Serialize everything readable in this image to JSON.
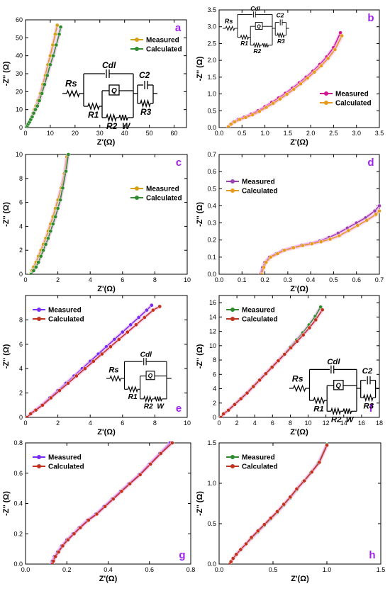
{
  "figure": {
    "colors": {
      "gold": "#d4a017",
      "green": "#2e8b2e",
      "magenta": "#d0178f",
      "purple": "#9b3fb0",
      "orange": "#e89a1e",
      "violet": "#7a2cf0",
      "red": "#c4301e",
      "panel_letter": "#a020f0",
      "glow": "#f3b6f0"
    }
  },
  "chart_data": [
    {
      "id": "a",
      "type": "line",
      "letter": "a",
      "xlabel": "Z'(Ω)",
      "ylabel": "-Z'' (Ω)",
      "xlim": [
        0,
        65
      ],
      "ylim": [
        0,
        60
      ],
      "xticks": [
        0,
        10,
        20,
        30,
        40,
        50,
        60
      ],
      "yticks": [
        0,
        10,
        20,
        30,
        40,
        50,
        60
      ],
      "legend": "right",
      "series": [
        {
          "name": "Measured",
          "color": "#d4a017",
          "x": [
            0.3,
            0.6,
            1,
            1.5,
            2,
            2.5,
            3,
            3.6,
            4.2,
            5,
            6,
            7,
            8,
            9,
            10,
            11,
            12,
            12.8
          ],
          "y": [
            0,
            1,
            2,
            3,
            4.5,
            6,
            8,
            10,
            12,
            15,
            19,
            24,
            29,
            35,
            40,
            46,
            52,
            57
          ]
        },
        {
          "name": "Calculated",
          "color": "#2e8b2e",
          "x": [
            0.3,
            0.7,
            1.1,
            1.6,
            2.1,
            2.7,
            3.3,
            4,
            4.8,
            5.6,
            6.6,
            7.7,
            8.8,
            10,
            11.2,
            12.4,
            13.6,
            14.2
          ],
          "y": [
            0,
            1,
            2,
            3,
            4.5,
            6,
            8,
            10,
            12,
            15,
            19,
            24,
            29,
            35,
            40,
            46,
            52,
            56
          ]
        }
      ],
      "circuit": {
        "Rs": "Rs",
        "Cdl": "Cdl",
        "Q": "Q",
        "C2": "C2",
        "R1": "R1",
        "R2": "R2",
        "W": "W",
        "R3": "R3"
      }
    },
    {
      "id": "b",
      "type": "line",
      "letter": "b",
      "xlabel": "Z'(Ω)",
      "ylabel": "-Z'' (Ω)",
      "xlim": [
        0,
        3.5
      ],
      "ylim": [
        0,
        3.5
      ],
      "xticks": [
        0,
        0.5,
        1.0,
        1.5,
        2.0,
        2.5,
        3.0,
        3.5
      ],
      "yticks": [
        0,
        0.5,
        1.0,
        1.5,
        2.0,
        2.5,
        3.0,
        3.5
      ],
      "legend": "right",
      "series": [
        {
          "name": "Measured",
          "color": "#d0178f",
          "x": [
            0.2,
            0.25,
            0.32,
            0.42,
            0.55,
            0.7,
            0.85,
            1.0,
            1.15,
            1.3,
            1.45,
            1.6,
            1.75,
            1.9,
            2.05,
            2.2,
            2.35,
            2.5,
            2.65
          ],
          "y": [
            0.02,
            0.1,
            0.17,
            0.24,
            0.31,
            0.4,
            0.5,
            0.62,
            0.75,
            0.88,
            1.02,
            1.17,
            1.33,
            1.5,
            1.68,
            1.88,
            2.1,
            2.38,
            2.82
          ]
        },
        {
          "name": "Calculated",
          "color": "#e89a1e",
          "x": [
            0.2,
            0.26,
            0.34,
            0.45,
            0.58,
            0.73,
            0.88,
            1.03,
            1.18,
            1.33,
            1.48,
            1.63,
            1.78,
            1.93,
            2.08,
            2.23,
            2.38,
            2.53,
            2.68
          ],
          "y": [
            0.02,
            0.1,
            0.17,
            0.24,
            0.3,
            0.38,
            0.48,
            0.6,
            0.72,
            0.85,
            0.99,
            1.14,
            1.3,
            1.47,
            1.65,
            1.84,
            2.06,
            2.32,
            2.73
          ]
        }
      ],
      "circuit": {
        "Rs": "Rs",
        "Cdl": "Cdl",
        "Q": "Q",
        "C2": "C2",
        "R1": "R1",
        "R2": "R2",
        "R3": "R3"
      }
    },
    {
      "id": "c",
      "type": "line",
      "letter": "c",
      "xlabel": "Z'(Ω)",
      "ylabel": "-Z'' (Ω)",
      "xlim": [
        0,
        10
      ],
      "ylim": [
        0,
        10
      ],
      "xticks": [
        0,
        2,
        4,
        6,
        8,
        10
      ],
      "yticks": [
        0,
        2,
        4,
        6,
        8,
        10
      ],
      "legend": "right",
      "series": [
        {
          "name": "Measured",
          "color": "#d4a017",
          "x": [
            0.3,
            0.4,
            0.5,
            0.65,
            0.8,
            0.95,
            1.1,
            1.25,
            1.4,
            1.55,
            1.7,
            1.85,
            2.0,
            2.2,
            2.4,
            2.55
          ],
          "y": [
            0,
            0.3,
            0.6,
            1.0,
            1.5,
            2.0,
            2.5,
            3.0,
            3.6,
            4.2,
            4.8,
            5.5,
            6.2,
            7.2,
            8.4,
            9.8
          ]
        },
        {
          "name": "Calculated",
          "color": "#2e8b2e",
          "x": [
            0.35,
            0.5,
            0.65,
            0.8,
            0.95,
            1.1,
            1.25,
            1.4,
            1.55,
            1.7,
            1.85,
            2.0,
            2.15,
            2.3,
            2.5,
            2.65
          ],
          "y": [
            0,
            0.3,
            0.6,
            1.0,
            1.5,
            2.0,
            2.5,
            3.0,
            3.6,
            4.2,
            4.8,
            5.5,
            6.2,
            7.2,
            8.6,
            10
          ]
        }
      ]
    },
    {
      "id": "d",
      "type": "line",
      "letter": "d",
      "xlabel": "Z'(Ω)",
      "ylabel": "-Z'' (Ω)",
      "xlim": [
        0,
        0.7
      ],
      "ylim": [
        0,
        0.7
      ],
      "xticks": [
        0,
        0.1,
        0.2,
        0.3,
        0.4,
        0.5,
        0.6,
        0.7
      ],
      "yticks": [
        0,
        0.1,
        0.2,
        0.3,
        0.4,
        0.5,
        0.6,
        0.7
      ],
      "legend": "top-left",
      "series": [
        {
          "name": "Measured",
          "color": "#9b3fb0",
          "x": [
            0.18,
            0.19,
            0.2,
            0.22,
            0.25,
            0.28,
            0.32,
            0.36,
            0.4,
            0.44,
            0.48,
            0.52,
            0.56,
            0.6,
            0.64,
            0.68,
            0.7
          ],
          "y": [
            0,
            0.04,
            0.07,
            0.1,
            0.12,
            0.14,
            0.155,
            0.17,
            0.18,
            0.195,
            0.215,
            0.24,
            0.27,
            0.3,
            0.33,
            0.37,
            0.4
          ]
        },
        {
          "name": "Calculated",
          "color": "#e89a1e",
          "x": [
            0.185,
            0.195,
            0.205,
            0.225,
            0.255,
            0.285,
            0.325,
            0.365,
            0.405,
            0.445,
            0.485,
            0.525,
            0.565,
            0.605,
            0.645,
            0.685,
            0.7
          ],
          "y": [
            0,
            0.04,
            0.07,
            0.1,
            0.12,
            0.14,
            0.155,
            0.168,
            0.178,
            0.19,
            0.205,
            0.225,
            0.255,
            0.285,
            0.315,
            0.35,
            0.37
          ]
        }
      ]
    },
    {
      "id": "e",
      "type": "line",
      "letter": "e",
      "xlabel": "Z'(Ω)",
      "ylabel": "-Z'' (Ω)",
      "xlim": [
        0,
        10
      ],
      "ylim": [
        0,
        10
      ],
      "xticks": [
        0,
        2,
        4,
        6,
        8,
        10
      ],
      "yticks": [
        0,
        2,
        4,
        6,
        8
      ],
      "legend": "top-left",
      "series": [
        {
          "name": "Measured",
          "color": "#7a2cf0",
          "x": [
            0.1,
            0.3,
            0.6,
            1,
            1.5,
            2,
            2.5,
            3,
            3.5,
            4,
            4.5,
            5,
            5.5,
            6,
            6.5,
            7,
            7.5,
            7.8
          ],
          "y": [
            0,
            0.3,
            0.6,
            1,
            1.6,
            2.2,
            2.8,
            3.4,
            4,
            4.6,
            5.2,
            5.8,
            6.4,
            7,
            7.6,
            8.2,
            8.8,
            9.2
          ]
        },
        {
          "name": "Calculated",
          "color": "#c4301e",
          "x": [
            0.1,
            0.32,
            0.64,
            1.05,
            1.57,
            2.1,
            2.63,
            3.15,
            3.68,
            4.2,
            4.73,
            5.26,
            5.78,
            6.31,
            6.84,
            7.36,
            7.89,
            8.3
          ],
          "y": [
            0,
            0.3,
            0.6,
            1,
            1.6,
            2.2,
            2.8,
            3.4,
            4,
            4.6,
            5.2,
            5.8,
            6.4,
            7,
            7.6,
            8.2,
            8.8,
            9.1
          ]
        }
      ],
      "circuit": {
        "Rs": "Rs",
        "Cdl": "Cdl",
        "Q": "Q",
        "R1": "R1",
        "R2": "R2",
        "W": "W"
      }
    },
    {
      "id": "f",
      "type": "line",
      "letter": "f",
      "xlabel": "Z'(Ω)",
      "ylabel": "-Z'' (Ω)",
      "xlim": [
        0,
        18
      ],
      "ylim": [
        0,
        17
      ],
      "xticks": [
        0,
        2,
        4,
        6,
        8,
        10,
        12,
        14,
        16,
        18
      ],
      "yticks": [
        0,
        2,
        4,
        6,
        8,
        10,
        12,
        14,
        16
      ],
      "legend": "top-left",
      "series": [
        {
          "name": "Measured",
          "color": "#2e8b2e",
          "x": [
            0.2,
            0.5,
            1,
            1.7,
            2.4,
            3.1,
            3.8,
            4.5,
            5.2,
            5.9,
            6.6,
            7.3,
            8,
            8.7,
            9.4,
            10.1,
            10.8,
            11.4
          ],
          "y": [
            0,
            0.5,
            1,
            1.8,
            2.6,
            3.4,
            4.3,
            5.2,
            6.1,
            7,
            7.9,
            8.8,
            9.8,
            10.8,
            11.8,
            12.9,
            14.1,
            15.4
          ]
        },
        {
          "name": "Calculated",
          "color": "#c4301e",
          "x": [
            0.2,
            0.5,
            1.05,
            1.75,
            2.45,
            3.15,
            3.85,
            4.55,
            5.25,
            5.95,
            6.65,
            7.35,
            8.05,
            8.75,
            9.45,
            10.15,
            10.85,
            11.6
          ],
          "y": [
            0,
            0.5,
            1,
            1.8,
            2.6,
            3.4,
            4.3,
            5.2,
            6.1,
            7,
            7.9,
            8.8,
            9.7,
            10.6,
            11.5,
            12.5,
            13.6,
            15
          ]
        }
      ],
      "circuit": {
        "Rs": "Rs",
        "Cdl": "Cdl",
        "Q": "Q",
        "C2": "C2",
        "R1": "R1",
        "R2": "R2",
        "W": "W",
        "R3": "R3"
      }
    },
    {
      "id": "g",
      "type": "line",
      "letter": "g",
      "xlabel": "Z'(Ω)",
      "ylabel": "-Z'' (Ω)",
      "xlim": [
        0,
        0.8
      ],
      "ylim": [
        0,
        0.8
      ],
      "xticks": [
        0,
        0.2,
        0.4,
        0.6,
        0.8
      ],
      "yticks": [
        0,
        0.2,
        0.4,
        0.6,
        0.8
      ],
      "legend": "top-left",
      "series": [
        {
          "name": "Measured",
          "color": "#7a2cf0",
          "x": [
            0.125,
            0.13,
            0.14,
            0.155,
            0.175,
            0.2,
            0.23,
            0.26,
            0.3,
            0.34,
            0.38,
            0.42,
            0.46,
            0.5,
            0.55,
            0.6,
            0.65,
            0.7
          ],
          "y": [
            0,
            0.02,
            0.05,
            0.08,
            0.12,
            0.16,
            0.2,
            0.24,
            0.29,
            0.33,
            0.38,
            0.43,
            0.48,
            0.53,
            0.59,
            0.66,
            0.73,
            0.8
          ]
        },
        {
          "name": "Calculated",
          "color": "#c4301e",
          "x": [
            0.13,
            0.135,
            0.145,
            0.16,
            0.18,
            0.205,
            0.235,
            0.265,
            0.305,
            0.345,
            0.385,
            0.425,
            0.465,
            0.505,
            0.555,
            0.605,
            0.655,
            0.71
          ],
          "y": [
            0,
            0.02,
            0.05,
            0.08,
            0.12,
            0.16,
            0.2,
            0.24,
            0.29,
            0.33,
            0.38,
            0.43,
            0.48,
            0.53,
            0.59,
            0.66,
            0.73,
            0.8
          ]
        }
      ]
    },
    {
      "id": "h",
      "type": "line",
      "letter": "h",
      "xlabel": "Z'(Ω)",
      "ylabel": "-Z'' (Ω)",
      "xlim": [
        0,
        1.5
      ],
      "ylim": [
        0,
        1.5
      ],
      "xticks": [
        0,
        0.5,
        1.0,
        1.5
      ],
      "yticks": [
        0,
        0.5,
        1.0,
        1.5
      ],
      "legend": "top-left",
      "series": [
        {
          "name": "Measured",
          "color": "#2e8b2e",
          "x": [
            0.1,
            0.11,
            0.13,
            0.16,
            0.2,
            0.25,
            0.3,
            0.36,
            0.42,
            0.48,
            0.54,
            0.6,
            0.66,
            0.72,
            0.78,
            0.85,
            0.92,
            1.0
          ],
          "y": [
            0,
            0.03,
            0.07,
            0.12,
            0.18,
            0.25,
            0.32,
            0.4,
            0.48,
            0.56,
            0.64,
            0.73,
            0.82,
            0.92,
            1.02,
            1.13,
            1.25,
            1.48
          ]
        },
        {
          "name": "Calculated",
          "color": "#c4301e",
          "x": [
            0.1,
            0.11,
            0.13,
            0.16,
            0.2,
            0.25,
            0.3,
            0.36,
            0.42,
            0.48,
            0.54,
            0.6,
            0.66,
            0.72,
            0.79,
            0.86,
            0.93,
            1.0
          ],
          "y": [
            0,
            0.03,
            0.07,
            0.12,
            0.18,
            0.25,
            0.33,
            0.41,
            0.49,
            0.57,
            0.65,
            0.74,
            0.83,
            0.93,
            1.03,
            1.14,
            1.26,
            1.47
          ]
        }
      ]
    }
  ]
}
